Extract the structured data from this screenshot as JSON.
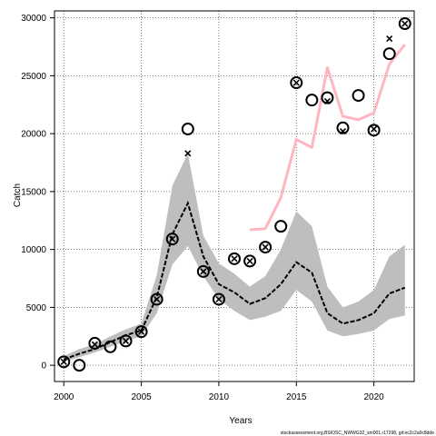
{
  "chart_data": {
    "type": "line",
    "xlabel": "Years",
    "ylabel": "Catch",
    "xlim": [
      1999.4,
      2022.6
    ],
    "ylim": [
      -1400,
      30600
    ],
    "x_ticks": [
      2000,
      2005,
      2010,
      2015,
      2020
    ],
    "y_ticks": [
      0,
      5000,
      10000,
      15000,
      20000,
      25000,
      30000
    ],
    "grid": true,
    "grid_style": "dotted",
    "footer_note": "stockassessment.org,BSIOSC_NWWG32_sm001,r17298, git:ec2c2a0c8dde",
    "colors": {
      "band": "#bebebe",
      "median_line": "#000000",
      "pink_line": "#ffb6c1",
      "markers": "#000000"
    },
    "series": [
      {
        "style": "shaded-band",
        "x": [
          2000,
          2001,
          2002,
          2003,
          2004,
          2005,
          2006,
          2007,
          2008,
          2009,
          2010,
          2011,
          2012,
          2013,
          2014,
          2015,
          2016,
          2017,
          2018,
          2019,
          2020,
          2021,
          2022
        ],
        "lower": [
          300,
          700,
          1100,
          1600,
          2100,
          2500,
          4500,
          8700,
          10300,
          7700,
          5700,
          4700,
          3900,
          4200,
          4700,
          6500,
          5500,
          3000,
          2500,
          2700,
          3000,
          4000,
          4300
        ],
        "upper": [
          800,
          1400,
          1800,
          2500,
          3100,
          3600,
          7800,
          15500,
          18300,
          11200,
          8800,
          7900,
          6800,
          7700,
          10000,
          13300,
          12000,
          6800,
          5000,
          5500,
          6500,
          9400,
          10400
        ]
      },
      {
        "style": "dashed-line",
        "x": [
          2000,
          2001,
          2002,
          2003,
          2004,
          2005,
          2006,
          2007,
          2008,
          2009,
          2010,
          2011,
          2012,
          2013,
          2014,
          2015,
          2016,
          2017,
          2018,
          2019,
          2020,
          2021,
          2022
        ],
        "y": [
          500,
          1000,
          1400,
          2000,
          2600,
          3000,
          5900,
          11300,
          14000,
          9400,
          7000,
          6300,
          5300,
          5800,
          7000,
          8900,
          8000,
          4500,
          3600,
          3900,
          4500,
          6200,
          6700
        ]
      },
      {
        "style": "pink-line",
        "x": [
          2012,
          2013,
          2014,
          2015,
          2016,
          2017,
          2018,
          2019,
          2020,
          2021,
          2022
        ],
        "y": [
          11700,
          11800,
          14500,
          19500,
          18800,
          25700,
          21500,
          21200,
          21800,
          26000,
          27700
        ]
      },
      {
        "style": "open-circle",
        "x": [
          2000,
          2001,
          2002,
          2003,
          2004,
          2005,
          2006,
          2007,
          2008,
          2009,
          2010,
          2011,
          2012,
          2013,
          2014,
          2015,
          2016,
          2017,
          2018,
          2019,
          2020,
          2021,
          2022
        ],
        "y": [
          300,
          0,
          1900,
          1600,
          2100,
          2900,
          5700,
          10900,
          20400,
          8100,
          5700,
          9200,
          9000,
          10200,
          12000,
          24400,
          22900,
          23100,
          20500,
          23300,
          20300,
          26900,
          29500
        ]
      },
      {
        "style": "cross",
        "x": [
          2000,
          2002,
          2004,
          2005,
          2006,
          2007,
          2008,
          2009,
          2010,
          2011,
          2012,
          2013,
          2015,
          2017,
          2018,
          2020,
          2021,
          2022
        ],
        "y": [
          300,
          1800,
          2100,
          2900,
          5700,
          10900,
          18300,
          8100,
          5700,
          9200,
          9000,
          10200,
          24400,
          22800,
          20200,
          20400,
          28200,
          29500
        ]
      }
    ]
  }
}
